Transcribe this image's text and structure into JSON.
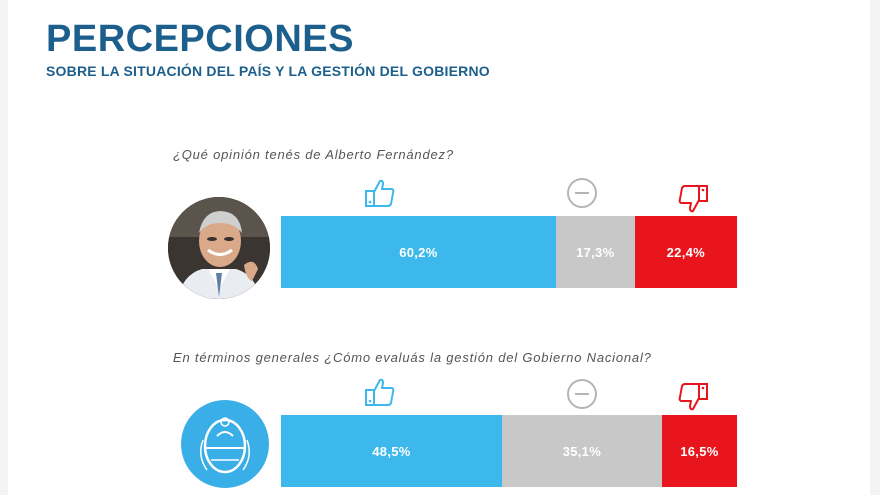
{
  "header": {
    "title": "PERCEPCIONES",
    "subtitle": "SOBRE LA SITUACIÓN DEL PAÍS Y LA GESTIÓN DEL GOBIERNO"
  },
  "colors": {
    "positive": "#3db8ec",
    "neutral": "#c8c8c8",
    "negative": "#e8151c",
    "brand": "#1d5f8c"
  },
  "icons": [
    "thumbs-up-icon",
    "neutral-face-icon",
    "thumbs-down-icon"
  ],
  "chart_data": [
    {
      "type": "bar",
      "orientation": "horizontal-stacked",
      "title": "¿Qué opinión tenés de Alberto Fernández?",
      "categories": [
        "positive",
        "neutral",
        "negative"
      ],
      "values": [
        60.2,
        17.3,
        22.4
      ],
      "labels": [
        "60,2%",
        "17,3%",
        "22,4%"
      ]
    },
    {
      "type": "bar",
      "orientation": "horizontal-stacked",
      "title": "En términos generales ¿Cómo evaluás la gestión del Gobierno Nacional?",
      "categories": [
        "positive",
        "neutral",
        "negative"
      ],
      "values": [
        48.5,
        35.1,
        16.5
      ],
      "labels": [
        "48,5%",
        "35,1%",
        "16,5%"
      ]
    }
  ]
}
